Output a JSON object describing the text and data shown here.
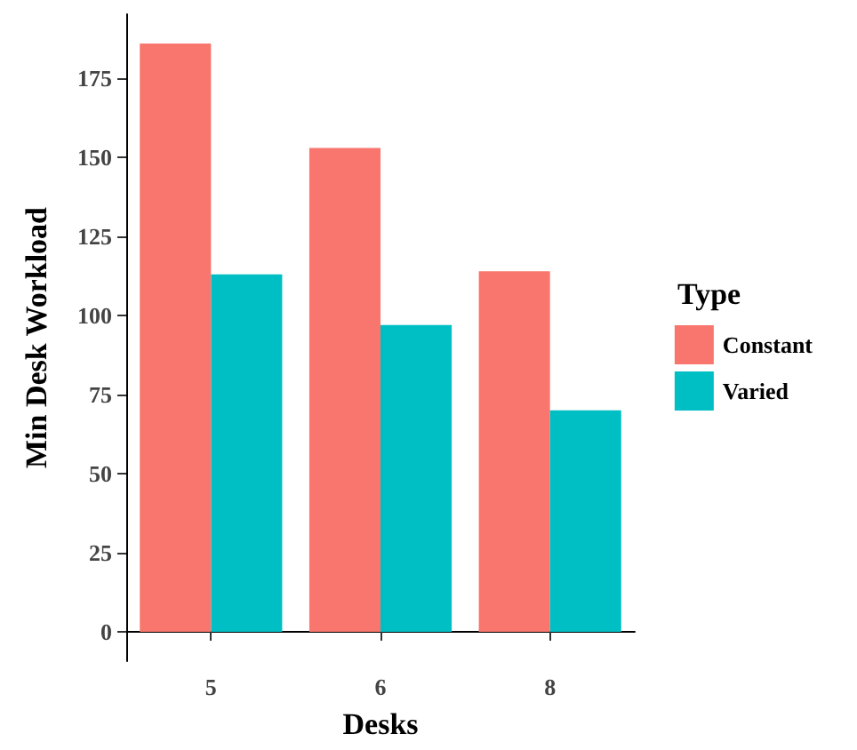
{
  "chart_data": {
    "type": "bar",
    "xlabel": "Desks",
    "ylabel": "Min Desk Workload",
    "legend_title": "Type",
    "categories": [
      "5",
      "6",
      "8"
    ],
    "series": [
      {
        "name": "Constant",
        "color": "#f8766d",
        "values": [
          186,
          153,
          114
        ]
      },
      {
        "name": "Varied",
        "color": "#00bfc4",
        "values": [
          113,
          97,
          70
        ]
      }
    ],
    "ylim": [
      -9.3,
      195.3
    ],
    "yticks": [
      0,
      25,
      50,
      75,
      100,
      125,
      150,
      175
    ],
    "grid": false,
    "legend": "right"
  }
}
